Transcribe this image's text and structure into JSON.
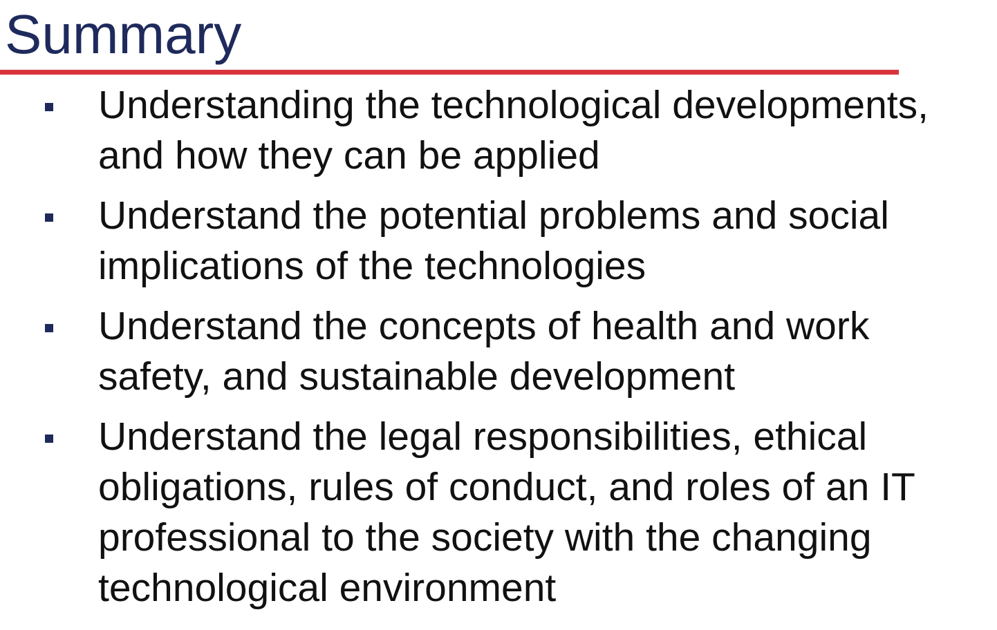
{
  "slide": {
    "title": "Summary",
    "bullets": [
      "Understanding the technological developments, and how they can be applied",
      "Understand the potential problems and social implications of the technologies",
      "Understand the concepts of health and work safety, and sustainable development",
      "Understand the legal responsibilities, ethical obligations, rules of conduct, and roles of an IT professional to the society with the changing technological environment"
    ]
  },
  "colors": {
    "title": "#1f2a5c",
    "rule": "#d9343e",
    "text": "#111111",
    "bullet_marker": "#1f2a5c"
  }
}
